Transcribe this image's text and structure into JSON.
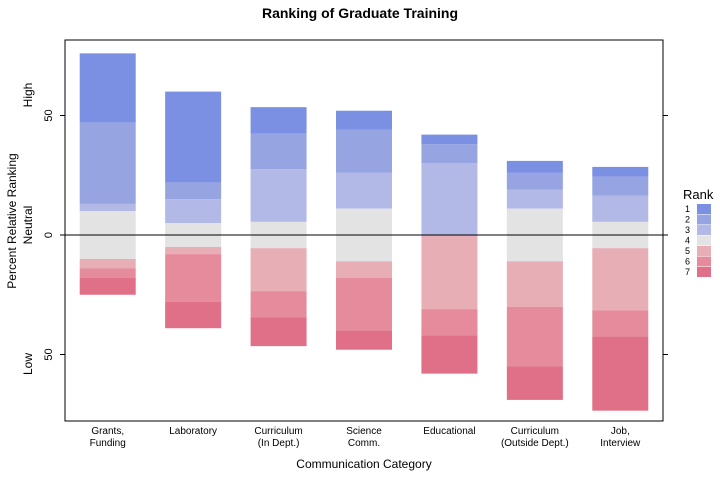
{
  "chart_data": {
    "type": "bar",
    "subtype": "diverging-stacked",
    "title": "Ranking of Graduate Training",
    "xlabel": "Communication Category",
    "ylabel": "Percent Relative Ranking",
    "y_side_labels": {
      "high": "High",
      "neutral": "Neutral",
      "low": "Low"
    },
    "ytick_labels": [
      {
        "value": 50,
        "label": "50"
      },
      {
        "value": 0,
        "label": "0"
      },
      {
        "value": -50,
        "label": "50"
      }
    ],
    "ylim": [
      -78,
      81
    ],
    "categories": [
      [
        "Grants,",
        "Funding"
      ],
      [
        "Laboratory"
      ],
      [
        "Curriculum",
        "(In Dept.)"
      ],
      [
        "Science",
        "Comm."
      ],
      [
        "Educational"
      ],
      [
        "Curriculum",
        "(Outside Dept.)"
      ],
      [
        "Job,",
        "Interview"
      ]
    ],
    "legend": {
      "title": "Rank",
      "position": "right",
      "labels": [
        "1",
        "2",
        "3",
        "4",
        "5",
        "6",
        "7"
      ]
    },
    "colors": [
      "#7b8fe3",
      "#96a4e2",
      "#b2b9e6",
      "#e3e3e3",
      "#e8aeb6",
      "#e58b9c",
      "#e06f88"
    ],
    "neutral_rank": "4",
    "series": [
      {
        "name": "1",
        "values": [
          29,
          38,
          11,
          8,
          4,
          5,
          4
        ]
      },
      {
        "name": "2",
        "values": [
          34,
          7,
          15,
          18,
          8,
          7,
          8
        ]
      },
      {
        "name": "3",
        "values": [
          3,
          10,
          22,
          15,
          30,
          8,
          11
        ]
      },
      {
        "name": "4",
        "values": [
          20,
          10,
          11,
          22,
          0,
          22,
          11
        ]
      },
      {
        "name": "5",
        "values": [
          4,
          3,
          18,
          7,
          31,
          19,
          26
        ]
      },
      {
        "name": "6",
        "values": [
          4,
          20,
          11,
          22,
          11,
          25,
          11
        ]
      },
      {
        "name": "7",
        "values": [
          7,
          11,
          12,
          8,
          16,
          14,
          31
        ]
      }
    ]
  }
}
